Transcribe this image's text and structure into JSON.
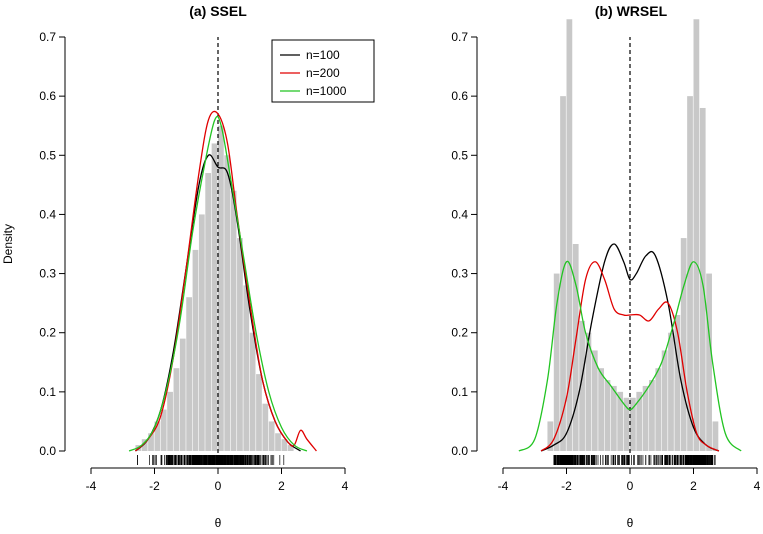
{
  "chart_data": [
    {
      "type": "area",
      "title": "(a) SSEL",
      "xlabel": "θ",
      "ylabel": "Density",
      "xlim": [
        -4,
        4
      ],
      "ylim": [
        0,
        0.7
      ],
      "x_ticks": [
        "-4",
        "-2",
        "0",
        "2",
        "4"
      ],
      "y_ticks": [
        "0.0",
        "0.1",
        "0.2",
        "0.3",
        "0.4",
        "0.5",
        "0.6",
        "0.7"
      ],
      "reference_line_x": 0,
      "legend": {
        "position": "top-right",
        "entries": [
          "n=100",
          "n=200",
          "n=1000"
        ]
      },
      "histogram": {
        "color": "#c8c8c8",
        "bins": [
          [
            -2.6,
            0.01
          ],
          [
            -2.4,
            0.02
          ],
          [
            -2.2,
            0.03
          ],
          [
            -2.0,
            0.05
          ],
          [
            -1.8,
            0.07
          ],
          [
            -1.6,
            0.1
          ],
          [
            -1.4,
            0.14
          ],
          [
            -1.2,
            0.19
          ],
          [
            -1.0,
            0.26
          ],
          [
            -0.8,
            0.34
          ],
          [
            -0.6,
            0.4
          ],
          [
            -0.4,
            0.47
          ],
          [
            -0.2,
            0.52
          ],
          [
            0.0,
            0.55
          ],
          [
            0.2,
            0.5
          ],
          [
            0.4,
            0.44
          ],
          [
            0.6,
            0.36
          ],
          [
            0.8,
            0.28
          ],
          [
            1.0,
            0.2
          ],
          [
            1.2,
            0.13
          ],
          [
            1.4,
            0.08
          ],
          [
            1.6,
            0.05
          ],
          [
            1.8,
            0.03
          ],
          [
            2.0,
            0.02
          ],
          [
            2.2,
            0.01
          ]
        ]
      },
      "series": [
        {
          "name": "n=100",
          "color": "#000000",
          "x": [
            -2.6,
            -2.2,
            -1.8,
            -1.4,
            -1.0,
            -0.6,
            -0.3,
            0.0,
            0.3,
            0.6,
            1.0,
            1.4,
            1.8,
            2.2,
            2.6
          ],
          "y": [
            0.0,
            0.02,
            0.07,
            0.17,
            0.31,
            0.45,
            0.5,
            0.48,
            0.47,
            0.39,
            0.24,
            0.12,
            0.05,
            0.015,
            0.0
          ]
        },
        {
          "name": "n=200",
          "color": "#e00000",
          "x": [
            -2.6,
            -2.2,
            -1.8,
            -1.4,
            -1.0,
            -0.6,
            -0.3,
            0.0,
            0.3,
            0.6,
            1.0,
            1.4,
            1.8,
            2.2,
            2.4,
            2.6,
            2.8,
            3.1
          ],
          "y": [
            0.0,
            0.02,
            0.06,
            0.16,
            0.31,
            0.47,
            0.56,
            0.57,
            0.52,
            0.4,
            0.25,
            0.12,
            0.05,
            0.015,
            0.01,
            0.035,
            0.02,
            0.0
          ]
        },
        {
          "name": "n=1000",
          "color": "#22c422",
          "x": [
            -2.8,
            -2.4,
            -2.0,
            -1.6,
            -1.2,
            -0.8,
            -0.4,
            -0.1,
            0.1,
            0.4,
            0.8,
            1.2,
            1.6,
            2.0,
            2.4,
            2.8
          ],
          "y": [
            0.0,
            0.01,
            0.04,
            0.11,
            0.22,
            0.37,
            0.49,
            0.56,
            0.55,
            0.46,
            0.33,
            0.2,
            0.1,
            0.04,
            0.01,
            0.0
          ]
        }
      ]
    },
    {
      "type": "area",
      "title": "(b) WRSEL",
      "xlabel": "θ",
      "ylabel": "",
      "xlim": [
        -4,
        4
      ],
      "ylim": [
        0,
        0.7
      ],
      "x_ticks": [
        "-4",
        "-2",
        "0",
        "2",
        "4"
      ],
      "y_ticks": [
        "0.0",
        "0.1",
        "0.2",
        "0.3",
        "0.4",
        "0.5",
        "0.6",
        "0.7"
      ],
      "reference_line_x": 0,
      "histogram": {
        "color": "#c8c8c8",
        "bins": [
          [
            -2.6,
            0.05
          ],
          [
            -2.4,
            0.3
          ],
          [
            -2.2,
            0.6
          ],
          [
            -2.0,
            0.73
          ],
          [
            -1.8,
            0.35
          ],
          [
            -1.6,
            0.22
          ],
          [
            -1.4,
            0.2
          ],
          [
            -1.2,
            0.17
          ],
          [
            -1.0,
            0.14
          ],
          [
            -0.8,
            0.12
          ],
          [
            -0.6,
            0.11
          ],
          [
            -0.4,
            0.1
          ],
          [
            -0.2,
            0.09
          ],
          [
            0.0,
            0.09
          ],
          [
            0.2,
            0.1
          ],
          [
            0.4,
            0.11
          ],
          [
            0.6,
            0.12
          ],
          [
            0.8,
            0.14
          ],
          [
            1.0,
            0.17
          ],
          [
            1.2,
            0.2
          ],
          [
            1.4,
            0.23
          ],
          [
            1.6,
            0.36
          ],
          [
            1.8,
            0.6
          ],
          [
            2.0,
            0.73
          ],
          [
            2.2,
            0.58
          ],
          [
            2.4,
            0.3
          ],
          [
            2.6,
            0.05
          ]
        ]
      },
      "series": [
        {
          "name": "n=100",
          "color": "#000000",
          "x": [
            -2.8,
            -2.4,
            -2.0,
            -1.6,
            -1.2,
            -0.8,
            -0.5,
            -0.2,
            0.0,
            0.2,
            0.5,
            0.8,
            1.2,
            1.6,
            2.0,
            2.4,
            2.8
          ],
          "y": [
            0.0,
            0.01,
            0.03,
            0.1,
            0.22,
            0.32,
            0.35,
            0.32,
            0.29,
            0.3,
            0.33,
            0.33,
            0.25,
            0.12,
            0.04,
            0.01,
            0.0
          ]
        },
        {
          "name": "n=200",
          "color": "#e00000",
          "x": [
            -2.8,
            -2.4,
            -2.0,
            -1.7,
            -1.4,
            -1.1,
            -0.8,
            -0.5,
            -0.2,
            0.0,
            0.3,
            0.6,
            0.9,
            1.2,
            1.5,
            1.8,
            2.1,
            2.4,
            2.8
          ],
          "y": [
            0.0,
            0.02,
            0.09,
            0.19,
            0.29,
            0.32,
            0.29,
            0.24,
            0.23,
            0.23,
            0.23,
            0.22,
            0.24,
            0.25,
            0.2,
            0.1,
            0.03,
            0.01,
            0.0
          ]
        },
        {
          "name": "n=1000",
          "color": "#22c422",
          "x": [
            -3.5,
            -3.0,
            -2.6,
            -2.3,
            -2.0,
            -1.7,
            -1.4,
            -1.0,
            -0.6,
            -0.2,
            0.0,
            0.2,
            0.6,
            1.0,
            1.4,
            1.7,
            2.0,
            2.3,
            2.6,
            3.0,
            3.5
          ],
          "y": [
            0.0,
            0.02,
            0.12,
            0.25,
            0.32,
            0.28,
            0.2,
            0.14,
            0.11,
            0.08,
            0.07,
            0.08,
            0.11,
            0.15,
            0.22,
            0.28,
            0.32,
            0.28,
            0.15,
            0.03,
            0.0
          ]
        }
      ]
    }
  ]
}
